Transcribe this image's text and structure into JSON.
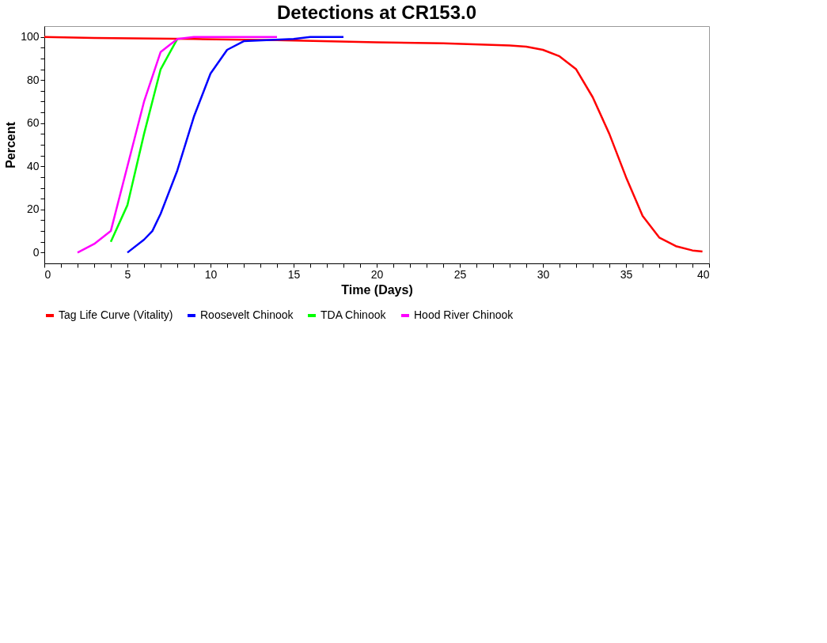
{
  "chart_data": {
    "type": "line",
    "title": "Detections at CR153.0",
    "xlabel": "Time (Days)",
    "ylabel": "Percent",
    "xlim": [
      0,
      40
    ],
    "ylim": [
      -5,
      105
    ],
    "xticks": [
      0,
      {
        "value": 1,
        "label": null
      },
      {
        "value": 2,
        "label": null
      },
      {
        "value": 3,
        "label": null
      },
      {
        "value": 4,
        "label": null
      },
      5,
      {
        "value": 6,
        "label": null
      },
      {
        "value": 7,
        "label": null
      },
      {
        "value": 8,
        "label": null
      },
      {
        "value": 9,
        "label": null
      },
      10,
      {
        "value": 11,
        "label": null
      },
      {
        "value": 12,
        "label": null
      },
      {
        "value": 13,
        "label": null
      },
      {
        "value": 14,
        "label": null
      },
      15,
      {
        "value": 16,
        "label": null
      },
      {
        "value": 17,
        "label": null
      },
      {
        "value": 18,
        "label": null
      },
      {
        "value": 19,
        "label": null
      },
      20,
      {
        "value": 21,
        "label": null
      },
      {
        "value": 22,
        "label": null
      },
      {
        "value": 23,
        "label": null
      },
      {
        "value": 24,
        "label": null
      },
      25,
      {
        "value": 26,
        "label": null
      },
      {
        "value": 27,
        "label": null
      },
      {
        "value": 28,
        "label": null
      },
      {
        "value": 29,
        "label": null
      },
      30,
      {
        "value": 31,
        "label": null
      },
      {
        "value": 32,
        "label": null
      },
      {
        "value": 33,
        "label": null
      },
      {
        "value": 34,
        "label": null
      },
      35,
      {
        "value": 36,
        "label": null
      },
      {
        "value": 37,
        "label": null
      },
      {
        "value": 38,
        "label": null
      },
      {
        "value": 39,
        "label": null
      },
      40
    ],
    "yticks": [
      0,
      {
        "value": 5,
        "label": null
      },
      {
        "value": 10,
        "label": null
      },
      {
        "value": 15,
        "label": null
      },
      20,
      {
        "value": 25,
        "label": null
      },
      {
        "value": 30,
        "label": null
      },
      {
        "value": 35,
        "label": null
      },
      40,
      {
        "value": 45,
        "label": null
      },
      {
        "value": 50,
        "label": null
      },
      {
        "value": 55,
        "label": null
      },
      60,
      {
        "value": 65,
        "label": null
      },
      {
        "value": 70,
        "label": null
      },
      {
        "value": 75,
        "label": null
      },
      80,
      {
        "value": 85,
        "label": null
      },
      {
        "value": 90,
        "label": null
      },
      {
        "value": 95,
        "label": null
      },
      100
    ],
    "grid": false,
    "legend": "bottom",
    "marker": "none",
    "line_style": "solid",
    "series": [
      {
        "name": "Tag Life Curve (Vitality)",
        "color": "#ff0000",
        "x": [
          0,
          3,
          9,
          14,
          20,
          24,
          28,
          29,
          30,
          31,
          32,
          33,
          34,
          35,
          36,
          37,
          38,
          39,
          39.6
        ],
        "values": [
          100,
          99.5,
          99,
          98.5,
          97.5,
          97,
          96,
          95.5,
          94,
          91,
          85,
          72,
          55,
          35,
          17,
          7,
          3,
          1,
          0.5
        ]
      },
      {
        "name": "Roosevelt Chinook",
        "color": "#0000ff",
        "x": [
          5,
          6,
          6.5,
          7,
          8,
          9,
          10,
          11,
          12,
          15,
          16,
          18
        ],
        "values": [
          0,
          6,
          10,
          18,
          38,
          63,
          83,
          94,
          98,
          99,
          100,
          100
        ]
      },
      {
        "name": "TDA Chinook",
        "color": "#00ff00",
        "x": [
          4,
          5,
          6,
          7,
          7.5,
          8
        ],
        "values": [
          5,
          22,
          55,
          85,
          92,
          99
        ]
      },
      {
        "name": "Hood River Chinook",
        "color": "#ff00ff",
        "x": [
          2,
          3,
          4,
          5,
          6,
          7,
          7.5,
          8,
          9,
          14
        ],
        "values": [
          0,
          4,
          10,
          40,
          70,
          93,
          96,
          99,
          100,
          100
        ]
      }
    ]
  }
}
